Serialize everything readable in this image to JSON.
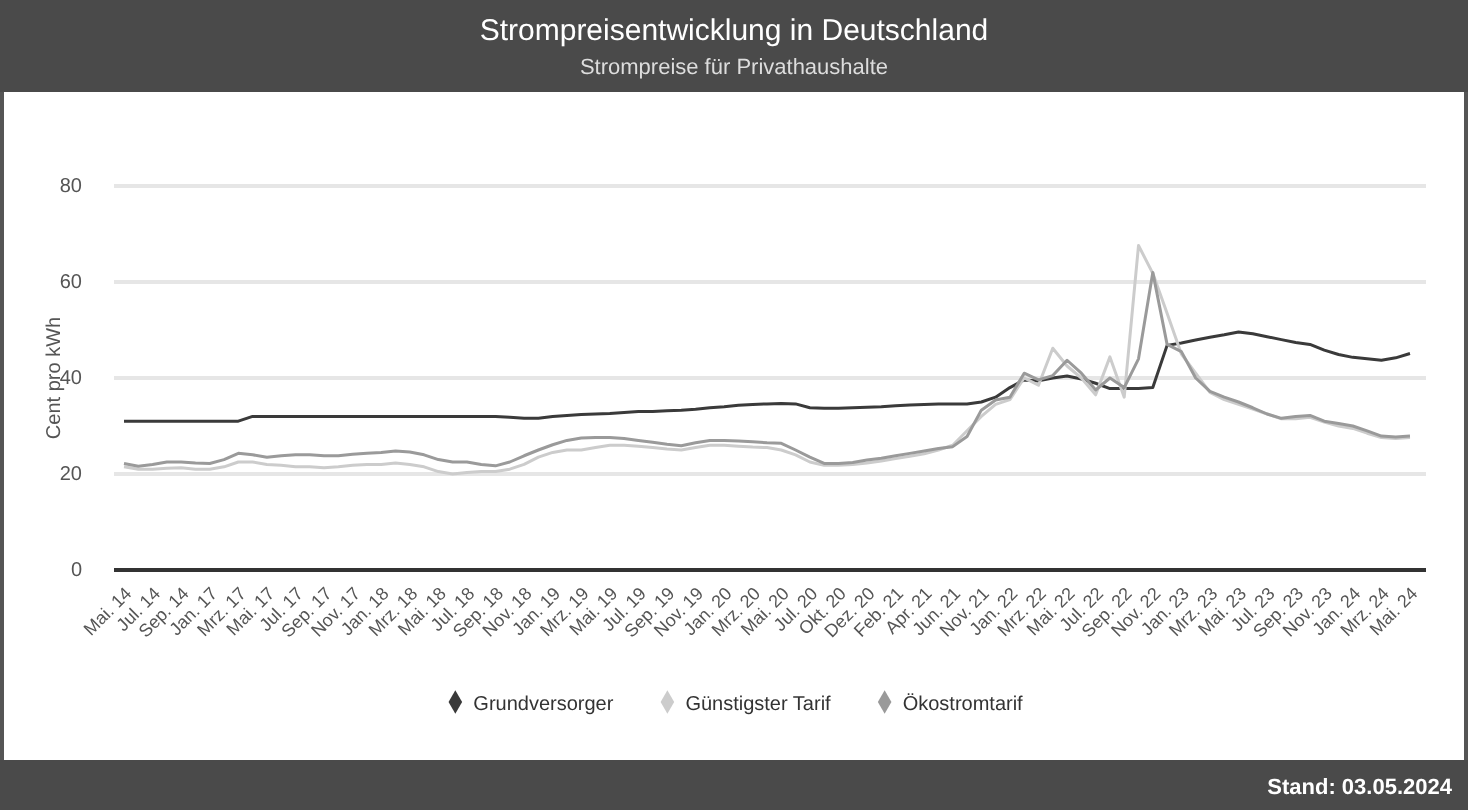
{
  "chart_data": {
    "type": "line",
    "title": "Strompreisentwicklung in Deutschland",
    "subtitle": "Strompreise für Privathaushalte",
    "ylabel": "Cent pro kWh",
    "annotations": [
      "Stand: 03.05.2024"
    ],
    "categories": [
      "Mai. 14",
      null,
      "Jul. 14",
      null,
      "Sep. 14",
      null,
      "Jan. 17",
      null,
      "Mrz. 17",
      null,
      "Mai. 17",
      null,
      "Jul. 17",
      null,
      "Sep. 17",
      null,
      "Nov. 17",
      null,
      "Jan. 18",
      null,
      "Mrz. 18",
      null,
      "Mai. 18",
      null,
      "Jul. 18",
      null,
      "Sep. 18",
      null,
      "Nov. 18",
      null,
      "Jan. 19",
      null,
      "Mrz. 19",
      null,
      "Mai. 19",
      null,
      "Jul. 19",
      null,
      "Sep. 19",
      null,
      "Nov. 19",
      null,
      "Jan. 20",
      null,
      "Mrz. 20",
      null,
      "Mai. 20",
      null,
      "Jul. 20",
      null,
      "Okt. 20",
      null,
      "Dez. 20",
      null,
      "Feb. 21",
      null,
      "Apr. 21",
      null,
      "Jun. 21",
      null,
      "Nov. 21",
      null,
      "Jan. 22",
      null,
      "Mrz. 22",
      null,
      "Mai. 22",
      null,
      "Jul. 22",
      null,
      "Sep. 22",
      null,
      "Nov. 22",
      null,
      "Jan. 23",
      null,
      "Mrz. 23",
      null,
      "Mai. 23",
      null,
      "Jul. 23",
      null,
      "Sep. 23",
      null,
      "Nov. 23",
      null,
      "Jan. 24",
      null,
      "Mrz. 24",
      null,
      "Mai. 24"
    ],
    "series": [
      {
        "name": "Grundversorger",
        "color": "#3a3a3a",
        "values": [
          31,
          31,
          31,
          31,
          31,
          31,
          31,
          31,
          31,
          32,
          32,
          32,
          32,
          32,
          32,
          32,
          32,
          32,
          32,
          32,
          32,
          32,
          32,
          32,
          32,
          32,
          32,
          31.8,
          31.6,
          31.6,
          32,
          32.2,
          32.4,
          32.5,
          32.6,
          32.8,
          33,
          33,
          33.2,
          33.3,
          33.5,
          33.8,
          34,
          34.3,
          34.5,
          34.6,
          34.7,
          34.6,
          33.8,
          33.7,
          33.7,
          33.8,
          33.9,
          34,
          34.2,
          34.4,
          34.5,
          34.6,
          34.6,
          34.6,
          35,
          36,
          38,
          39.6,
          39.4,
          40,
          40.4,
          39.8,
          38.9,
          37.8,
          37.8,
          37.8,
          38,
          46.8,
          47.3,
          47.9,
          48.5,
          49,
          49.6,
          49.2,
          48.6,
          48,
          47.4,
          47,
          45.8,
          44.9,
          44.3,
          44,
          43.7,
          44.2,
          45.1
        ]
      },
      {
        "name": "Günstigster Tarif",
        "color": "#cccccc",
        "values": [
          21.5,
          21,
          21,
          21.2,
          21.3,
          21,
          21,
          21.5,
          22.5,
          22.5,
          22,
          21.8,
          21.5,
          21.5,
          21.3,
          21.5,
          21.8,
          22,
          22,
          22.3,
          22,
          21.5,
          20.5,
          20,
          20.3,
          20.5,
          20.5,
          21,
          22,
          23.5,
          24.5,
          25,
          25,
          25.5,
          26,
          26,
          25.8,
          25.5,
          25.2,
          25,
          25.5,
          26,
          26,
          25.8,
          25.6,
          25.5,
          25,
          24,
          22.5,
          21.8,
          21.8,
          22,
          22.3,
          22.7,
          23.2,
          23.7,
          24.2,
          25,
          26,
          29,
          32,
          34.5,
          35.5,
          40,
          38.5,
          46.2,
          42.5,
          40,
          36.5,
          44.4,
          36,
          67.6,
          61.8,
          53.5,
          45,
          41,
          37,
          35.5,
          34.5,
          33.5,
          32.5,
          31.5,
          31.5,
          31.8,
          30.8,
          30,
          29.5,
          28.5,
          27.6,
          27.4,
          27.6
        ]
      },
      {
        "name": "Ökostromtarif",
        "color": "#9a9a9a",
        "values": [
          22.2,
          21.6,
          22,
          22.5,
          22.5,
          22.3,
          22.2,
          23,
          24.3,
          24,
          23.5,
          23.8,
          24,
          24,
          23.8,
          23.8,
          24.1,
          24.3,
          24.5,
          24.8,
          24.6,
          24,
          23,
          22.5,
          22.5,
          22,
          21.7,
          22.5,
          23.8,
          25,
          26.1,
          27,
          27.5,
          27.6,
          27.6,
          27.4,
          27,
          26.6,
          26.2,
          25.9,
          26.5,
          27,
          27,
          26.9,
          26.7,
          26.5,
          26.4,
          25,
          23.5,
          22.2,
          22.2,
          22.4,
          22.9,
          23.3,
          23.8,
          24.3,
          24.8,
          25.3,
          25.7,
          27.8,
          33.3,
          35.4,
          36,
          41,
          39.6,
          40.5,
          43.7,
          41,
          37.5,
          40,
          38,
          44,
          62,
          47,
          45.5,
          40,
          37.2,
          36,
          35,
          33.8,
          32.5,
          31.6,
          32,
          32.2,
          31,
          30.5,
          30,
          29,
          27.9,
          27.7,
          27.9
        ]
      }
    ],
    "ylim": [
      0,
      80
    ],
    "yticks": [
      0,
      20,
      40,
      60,
      80
    ],
    "grid": "y",
    "legend": "bottom",
    "marker": "none",
    "line_style": "solid"
  }
}
